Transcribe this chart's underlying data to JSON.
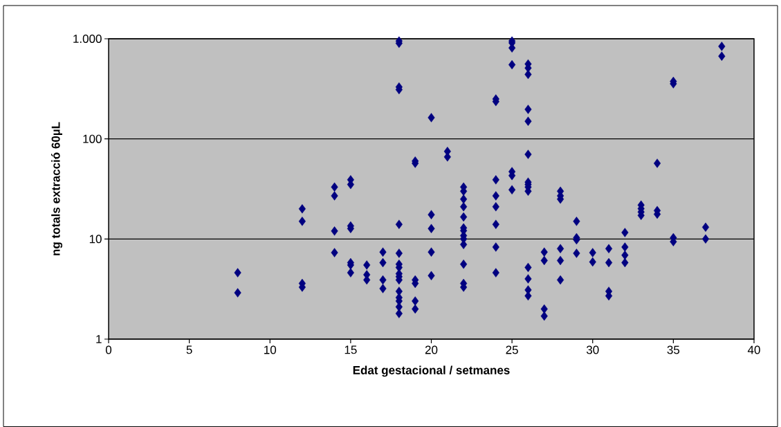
{
  "chart_data": {
    "type": "scatter",
    "xlabel": "Edat gestacional  / setmanes",
    "ylabel": "ng totals extracció  60µL",
    "log": "y",
    "grid": "y",
    "marker": "diamond",
    "xlim": [
      0,
      40
    ],
    "xticks": [
      0,
      5,
      10,
      15,
      20,
      25,
      30,
      35,
      40
    ],
    "ylim": [
      1,
      1000
    ],
    "yticks": [
      1,
      10,
      100,
      {
        "value": 1000,
        "label": "1.000"
      }
    ],
    "series": [
      {
        "color": "#000080",
        "x": [
          8,
          8,
          12,
          12,
          12,
          12,
          14,
          14,
          14,
          14,
          15,
          15,
          15,
          15,
          15,
          15,
          15,
          16,
          16,
          16,
          17,
          17,
          17,
          17,
          18,
          18,
          18,
          18,
          18,
          18,
          18,
          18,
          18,
          18,
          18,
          18,
          18,
          18,
          18,
          18,
          19,
          19,
          19,
          19,
          19,
          19,
          20,
          20,
          20,
          20,
          20,
          21,
          21,
          22,
          22,
          22,
          22,
          22,
          22,
          22,
          22,
          22,
          22,
          22,
          22,
          22,
          24,
          24,
          24,
          24,
          24,
          24,
          24,
          24,
          25,
          25,
          25,
          25,
          25,
          25,
          25,
          26,
          26,
          26,
          26,
          26,
          26,
          26,
          26,
          26,
          26,
          26,
          26,
          26,
          26,
          27,
          27,
          27,
          27,
          28,
          28,
          28,
          28,
          28,
          28,
          29,
          29,
          29,
          29,
          30,
          30,
          31,
          31,
          31,
          31,
          32,
          32,
          32,
          32,
          33,
          33,
          33,
          33,
          34,
          34,
          34,
          35,
          35,
          35,
          35,
          37,
          37,
          38,
          38
        ],
        "values": [
          4.6,
          2.9,
          20,
          15,
          3.6,
          3.3,
          33,
          27,
          12,
          7.3,
          39,
          35,
          13.5,
          12.7,
          5.8,
          5.5,
          4.6,
          5.5,
          4.4,
          3.9,
          7.4,
          5.8,
          3.9,
          3.2,
          950,
          900,
          330,
          310,
          14,
          7.2,
          5.6,
          5.2,
          4.5,
          4.2,
          3.9,
          3.0,
          2.6,
          2.4,
          2.1,
          1.8,
          60,
          57,
          3.9,
          3.6,
          2.4,
          2.0,
          163,
          17.5,
          12.7,
          7.4,
          4.3,
          75,
          66,
          33,
          30,
          25,
          21,
          16.6,
          12.9,
          12.1,
          10.8,
          10,
          8.8,
          5.6,
          3.6,
          3.3,
          250,
          236,
          39,
          27,
          21,
          14,
          8.3,
          4.6,
          950,
          910,
          810,
          550,
          47,
          43,
          31,
          560,
          510,
          440,
          197,
          150,
          70,
          37,
          35,
          33,
          30,
          5.2,
          4.0,
          3.1,
          2.7,
          7.4,
          6.1,
          2.0,
          1.7,
          30,
          27,
          25,
          8.0,
          6.1,
          3.9,
          15,
          10.3,
          9.8,
          7.2,
          7.3,
          5.9,
          8.0,
          5.8,
          3.0,
          2.7,
          11.6,
          8.3,
          6.9,
          5.8,
          21.8,
          20.1,
          18.6,
          17.2,
          57,
          19.2,
          17.7,
          375,
          355,
          10.3,
          9.4,
          13.1,
          10,
          840,
          670
        ]
      }
    ]
  }
}
